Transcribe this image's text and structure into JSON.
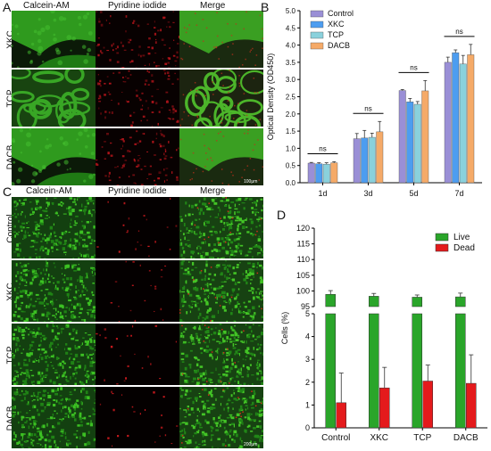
{
  "panels": {
    "A": {
      "letter": "A",
      "columns": [
        "Calcein-AM",
        "Pyridine iodide",
        "Merge"
      ],
      "rows": [
        "XKC",
        "TCP",
        "DACB"
      ],
      "scale_bar": "100μm"
    },
    "C": {
      "letter": "C",
      "columns": [
        "Calcein-AM",
        "Pyridine iodide",
        "Merge"
      ],
      "rows": [
        "Control",
        "XKC",
        "TCP",
        "DACB"
      ],
      "scale_bar": "200μm"
    }
  },
  "chart_data": [
    {
      "panel": "B",
      "type": "bar",
      "ylabel": "Optical Density (OD450)",
      "ylim": [
        0,
        5.0
      ],
      "yticks": [
        "0.0",
        "0.5",
        "1.0",
        "1.5",
        "2.0",
        "2.5",
        "3.0",
        "3.5",
        "4.0",
        "4.5",
        "5.0"
      ],
      "categories": [
        "1d",
        "3d",
        "5d",
        "7d"
      ],
      "legend_position": "top-left",
      "series": [
        {
          "name": "Control",
          "color": "#9a8fd6",
          "values": [
            0.57,
            1.28,
            2.68,
            3.5
          ],
          "errors": [
            0.02,
            0.15,
            0.03,
            0.15
          ]
        },
        {
          "name": "XKC",
          "color": "#4d9df0",
          "values": [
            0.55,
            1.3,
            2.35,
            3.78
          ],
          "errors": [
            0.03,
            0.22,
            0.1,
            0.08
          ]
        },
        {
          "name": "TCP",
          "color": "#8ad1dc",
          "values": [
            0.54,
            1.32,
            2.28,
            3.45
          ],
          "errors": [
            0.04,
            0.12,
            0.08,
            0.25
          ]
        },
        {
          "name": "DACB",
          "color": "#f5aa68",
          "values": [
            0.58,
            1.48,
            2.67,
            3.72
          ],
          "errors": [
            0.03,
            0.3,
            0.3,
            0.3
          ]
        }
      ],
      "annotations": [
        "ns",
        "ns",
        "ns",
        "ns"
      ]
    },
    {
      "panel": "D",
      "type": "bar",
      "ylabel": "Cells (%)",
      "yaxis_broken": true,
      "ylim_lower": [
        0,
        5
      ],
      "ylim_upper": [
        95,
        120
      ],
      "yticks_lower": [
        "0",
        "1",
        "2",
        "3",
        "4",
        "5"
      ],
      "yticks_upper": [
        "95",
        "100",
        "105",
        "110",
        "115",
        "120"
      ],
      "categories": [
        "Control",
        "XKC",
        "TCP",
        "DACB"
      ],
      "legend_position": "top-right",
      "series": [
        {
          "name": "Live",
          "color": "#2aa52a",
          "values": [
            98.9,
            98.3,
            98.0,
            98.1
          ],
          "errors": [
            1.2,
            0.9,
            0.7,
            1.2
          ]
        },
        {
          "name": "Dead",
          "color": "#e41a1c",
          "values": [
            1.1,
            1.75,
            2.05,
            1.95
          ],
          "errors": [
            1.3,
            0.9,
            0.7,
            1.25
          ]
        }
      ]
    }
  ]
}
